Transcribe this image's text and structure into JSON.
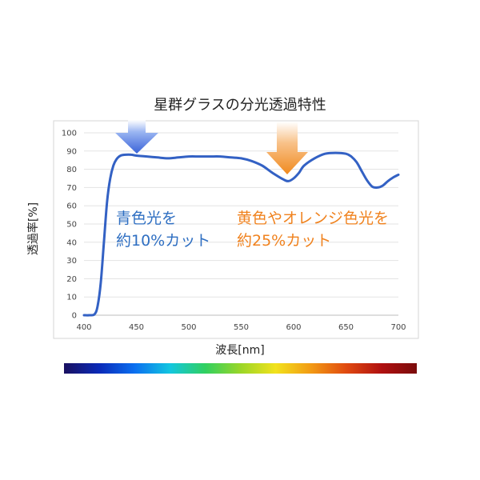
{
  "chart_data": {
    "type": "line",
    "title": "星群グラスの分光透過特性",
    "xlabel": "波長[nm]",
    "ylabel": "透過率[%]",
    "xlim": [
      400,
      700
    ],
    "ylim": [
      0,
      100
    ],
    "x_ticks": [
      400,
      450,
      500,
      550,
      600,
      650,
      700
    ],
    "y_ticks": [
      0,
      10,
      20,
      30,
      40,
      50,
      60,
      70,
      80,
      90,
      100
    ],
    "grid": "horizontal",
    "legend": "none",
    "series": [
      {
        "color": "#3361c4",
        "x": [
          400,
          405,
          410,
          413,
          416,
          419,
          422,
          425,
          428,
          431,
          435,
          440,
          445,
          450,
          460,
          470,
          480,
          490,
          500,
          510,
          520,
          530,
          540,
          550,
          560,
          570,
          580,
          590,
          595,
          600,
          605,
          610,
          620,
          630,
          640,
          650,
          655,
          660,
          665,
          670,
          675,
          680,
          685,
          690,
          695,
          700
        ],
        "y": [
          0,
          0,
          0.5,
          5,
          18,
          40,
          62,
          75,
          82,
          85.5,
          87.5,
          88,
          88,
          87.5,
          87,
          86.5,
          86,
          86.5,
          87,
          87,
          87,
          87,
          86.5,
          86,
          84.5,
          82,
          78,
          74.5,
          73.5,
          75,
          78,
          82,
          86,
          88.5,
          89,
          88.5,
          87,
          84,
          79,
          74,
          70.5,
          70,
          71,
          73.5,
          75.5,
          77
        ]
      }
    ]
  },
  "annotations": {
    "blue_line1": "青色光を",
    "blue_line2": "約10%カット",
    "orange_line1": "黄色やオレンジ色光を",
    "orange_line2": "約25%カット"
  },
  "colors": {
    "blue_arrow": "#3a63d8",
    "orange_arrow": "#f08a1f",
    "blue_text": "#2f6fc2",
    "orange_text": "#f0821e",
    "spectrum": [
      "#1a1060",
      "#0a2ab8",
      "#0b6ff0",
      "#12c6e0",
      "#30d060",
      "#9ad628",
      "#f2e21c",
      "#f29a14",
      "#e04a10",
      "#b01010",
      "#7a0c0c"
    ]
  }
}
